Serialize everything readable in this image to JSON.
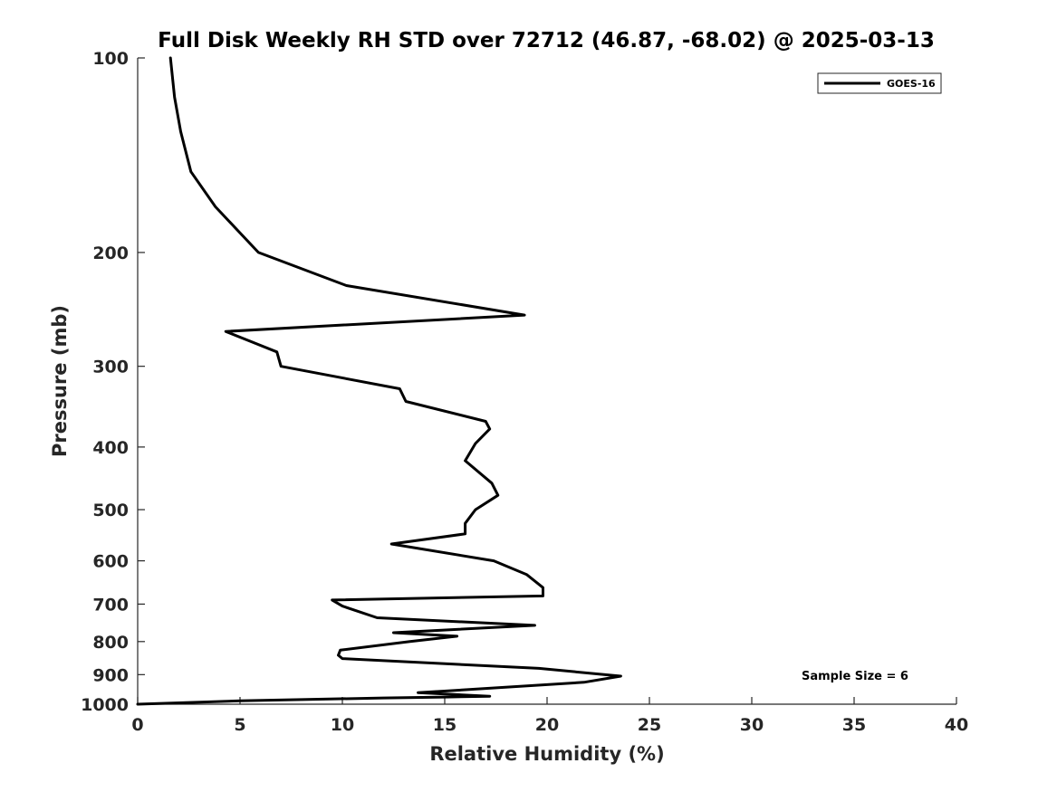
{
  "chart_data": {
    "type": "line",
    "title": "Full Disk Weekly RH STD over 72712 (46.87, -68.02) @ 2025-03-13",
    "xlabel": "Relative Humidity (%)",
    "ylabel": "Pressure (mb)",
    "xlim": [
      0,
      40
    ],
    "ylim": [
      100,
      1000
    ],
    "yscale": "log",
    "y_reversed": true,
    "xticks": [
      0,
      5,
      10,
      15,
      20,
      25,
      30,
      35,
      40
    ],
    "xtick_labels": [
      "0",
      "5",
      "10",
      "15",
      "20",
      "25",
      "30",
      "35",
      "40"
    ],
    "yticks": [
      100,
      200,
      300,
      400,
      500,
      600,
      700,
      800,
      900,
      1000
    ],
    "ytick_labels": [
      "100",
      "200",
      "300",
      "400",
      "500",
      "600",
      "700",
      "800",
      "900",
      "1000"
    ],
    "grid": false,
    "legend_position": "top-right",
    "annotation": "Sample Size = 6",
    "series": [
      {
        "name": "GOES-16",
        "color": "#000000",
        "points": [
          [
            1.6,
            100
          ],
          [
            1.8,
            115
          ],
          [
            2.1,
            130
          ],
          [
            2.6,
            150
          ],
          [
            3.8,
            170
          ],
          [
            5.9,
            200
          ],
          [
            10.2,
            225
          ],
          [
            18.9,
            250
          ],
          [
            4.3,
            265
          ],
          [
            6.8,
            285
          ],
          [
            7.0,
            300
          ],
          [
            12.8,
            325
          ],
          [
            13.1,
            340
          ],
          [
            17.0,
            365
          ],
          [
            17.2,
            375
          ],
          [
            16.5,
            395
          ],
          [
            16.0,
            420
          ],
          [
            17.3,
            455
          ],
          [
            17.6,
            475
          ],
          [
            16.5,
            500
          ],
          [
            16.0,
            525
          ],
          [
            16.0,
            545
          ],
          [
            12.4,
            565
          ],
          [
            17.4,
            600
          ],
          [
            19.0,
            630
          ],
          [
            19.8,
            660
          ],
          [
            19.8,
            680
          ],
          [
            9.5,
            690
          ],
          [
            10.0,
            705
          ],
          [
            11.7,
            735
          ],
          [
            19.4,
            755
          ],
          [
            12.5,
            775
          ],
          [
            15.6,
            785
          ],
          [
            13.3,
            800
          ],
          [
            9.9,
            825
          ],
          [
            9.8,
            840
          ],
          [
            10.0,
            850
          ],
          [
            19.6,
            880
          ],
          [
            23.6,
            905
          ],
          [
            21.8,
            925
          ],
          [
            13.7,
            960
          ],
          [
            17.2,
            972
          ],
          [
            15.0,
            975
          ],
          [
            12.0,
            978
          ],
          [
            5.0,
            988
          ],
          [
            0.0,
            1000
          ]
        ]
      }
    ]
  }
}
